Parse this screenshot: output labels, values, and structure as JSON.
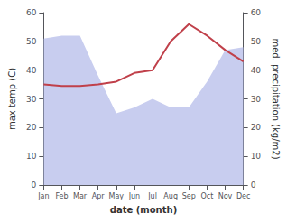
{
  "chart_data": {
    "type": "line",
    "xlabel": "date (month)",
    "ylabel": "max temp (C)",
    "y2label": "med. precipitation (kg/m2)",
    "categories": [
      "Jan",
      "Feb",
      "Mar",
      "Apr",
      "May",
      "Jun",
      "Jul",
      "Aug",
      "Sep",
      "Oct",
      "Nov",
      "Dec"
    ],
    "series": [
      {
        "type": "area",
        "axis": "y2",
        "color": "#b0b8e8",
        "values": [
          51,
          52,
          52,
          38,
          25,
          27,
          30,
          27,
          27,
          36,
          47,
          48
        ]
      },
      {
        "type": "line",
        "color": "#c0404a",
        "values": [
          35,
          34.5,
          34.5,
          35,
          36,
          39,
          40,
          50,
          56,
          52,
          47,
          43
        ]
      }
    ],
    "ylim": [
      0,
      60
    ],
    "yticks": [
      0,
      10,
      20,
      30,
      40,
      50,
      60
    ],
    "y2lim": [
      0,
      60
    ],
    "y2ticks": [
      0,
      10,
      20,
      30,
      40,
      50,
      60
    ],
    "grid": false
  }
}
